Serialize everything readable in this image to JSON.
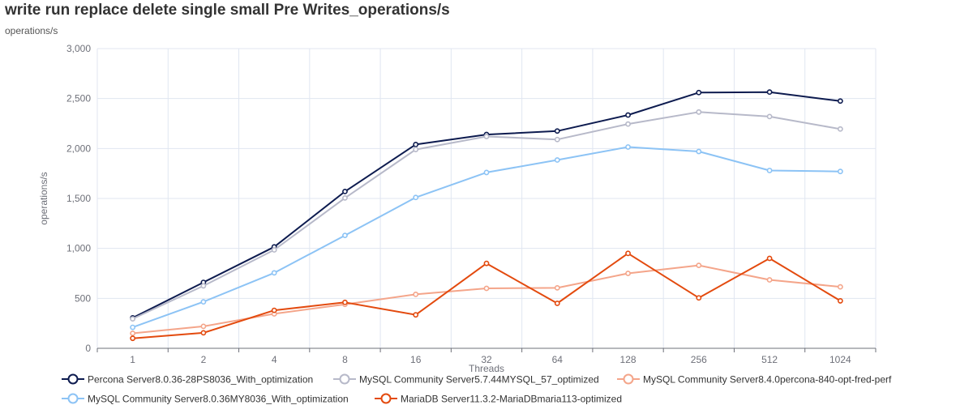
{
  "chart_data": {
    "type": "line",
    "title": "write run replace delete single small Pre Writes_operations/s",
    "subtitle": "operations/s",
    "xlabel": "Threads",
    "ylabel": "operations/s",
    "ylim": [
      0,
      3000
    ],
    "yticks": [
      "0",
      "500",
      "1,000",
      "1,500",
      "2,000",
      "2,500",
      "3,000"
    ],
    "ytick_values": [
      0,
      500,
      1000,
      1500,
      2000,
      2500,
      3000
    ],
    "categories": [
      "1",
      "2",
      "4",
      "8",
      "16",
      "32",
      "64",
      "128",
      "256",
      "512",
      "1024"
    ],
    "grid": true,
    "legend_position": "bottom-left",
    "series": [
      {
        "name": "Percona Server8.0.36-28PS8036_With_optimization",
        "color": "#0d1b4f",
        "values": [
          305,
          660,
          1015,
          1570,
          2040,
          2140,
          2175,
          2335,
          2560,
          2565,
          2475
        ]
      },
      {
        "name": "MySQL Community Server5.7.44MYSQL_57_optimized",
        "color": "#b7b9c9",
        "values": [
          295,
          625,
          985,
          1505,
          1990,
          2120,
          2090,
          2245,
          2365,
          2320,
          2195
        ]
      },
      {
        "name": "MySQL Community Server8.4.0percona-840-opt-fred-perf",
        "color": "#f4a58a",
        "values": [
          150,
          220,
          345,
          440,
          540,
          600,
          605,
          750,
          830,
          685,
          615
        ]
      },
      {
        "name": "MySQL Community Server8.0.36MY8036_With_optimization",
        "color": "#8cc3f5",
        "values": [
          210,
          465,
          755,
          1130,
          1510,
          1760,
          1885,
          2015,
          1970,
          1780,
          1770
        ]
      },
      {
        "name": "MariaDB Server11.3.2-MariaDBmaria113-optimized",
        "color": "#e34a0e",
        "values": [
          100,
          155,
          380,
          460,
          335,
          850,
          450,
          950,
          505,
          900,
          475
        ]
      }
    ]
  }
}
